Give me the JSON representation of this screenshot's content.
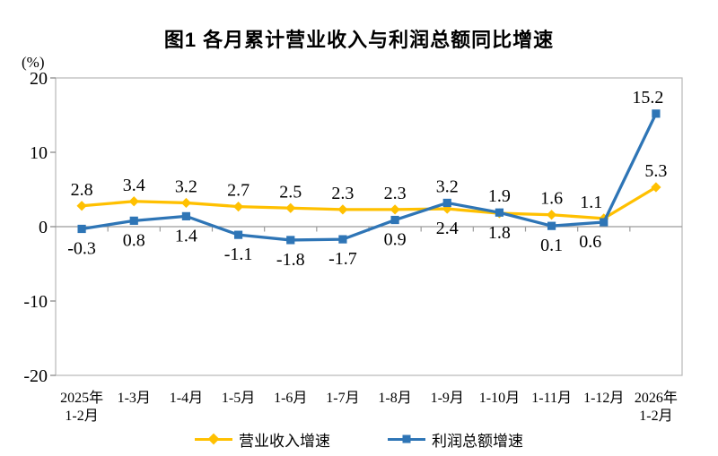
{
  "title": "图1 各月累计营业收入与利润总额同比增速",
  "y_unit": "(%)",
  "chart_data": {
    "type": "line",
    "categories": [
      [
        "2025年",
        "1-2月"
      ],
      [
        "1-3月"
      ],
      [
        "1-4月"
      ],
      [
        "1-5月"
      ],
      [
        "1-6月"
      ],
      [
        "1-7月"
      ],
      [
        "1-8月"
      ],
      [
        "1-9月"
      ],
      [
        "1-10月"
      ],
      [
        "1-11月"
      ],
      [
        "1-12月"
      ],
      [
        "2026年",
        "1-2月"
      ]
    ],
    "series": [
      {
        "name": "营业收入增速",
        "color": "#FFC000",
        "marker": "diamond",
        "values": [
          2.8,
          3.4,
          3.2,
          2.7,
          2.5,
          2.3,
          2.3,
          2.4,
          1.8,
          1.6,
          1.1,
          5.3
        ],
        "label_side": [
          "above",
          "above",
          "above",
          "above",
          "above",
          "above",
          "above",
          "below",
          "below",
          "above",
          "above",
          "above"
        ],
        "label_dx": [
          0,
          0,
          0,
          0,
          0,
          0,
          0,
          0,
          0,
          0,
          -14,
          0
        ]
      },
      {
        "name": "利润总额增速",
        "color": "#2E75B6",
        "marker": "square",
        "values": [
          -0.3,
          0.8,
          1.4,
          -1.1,
          -1.8,
          -1.7,
          0.9,
          3.2,
          1.9,
          0.1,
          0.6,
          15.2
        ],
        "label_side": [
          "below",
          "below",
          "below",
          "below",
          "below",
          "below",
          "below",
          "above",
          "above",
          "below",
          "below",
          "above"
        ],
        "label_dx": [
          0,
          0,
          0,
          0,
          0,
          0,
          0,
          0,
          0,
          0,
          -15,
          -9
        ]
      }
    ],
    "title": "图1 各月累计营业收入与利润总额同比增速",
    "xlabel": "",
    "ylabel": "(%)",
    "ylim": [
      -20,
      20
    ],
    "yticks": [
      20,
      10,
      0,
      -10,
      -20
    ],
    "grid": false,
    "legend_position": "bottom"
  }
}
